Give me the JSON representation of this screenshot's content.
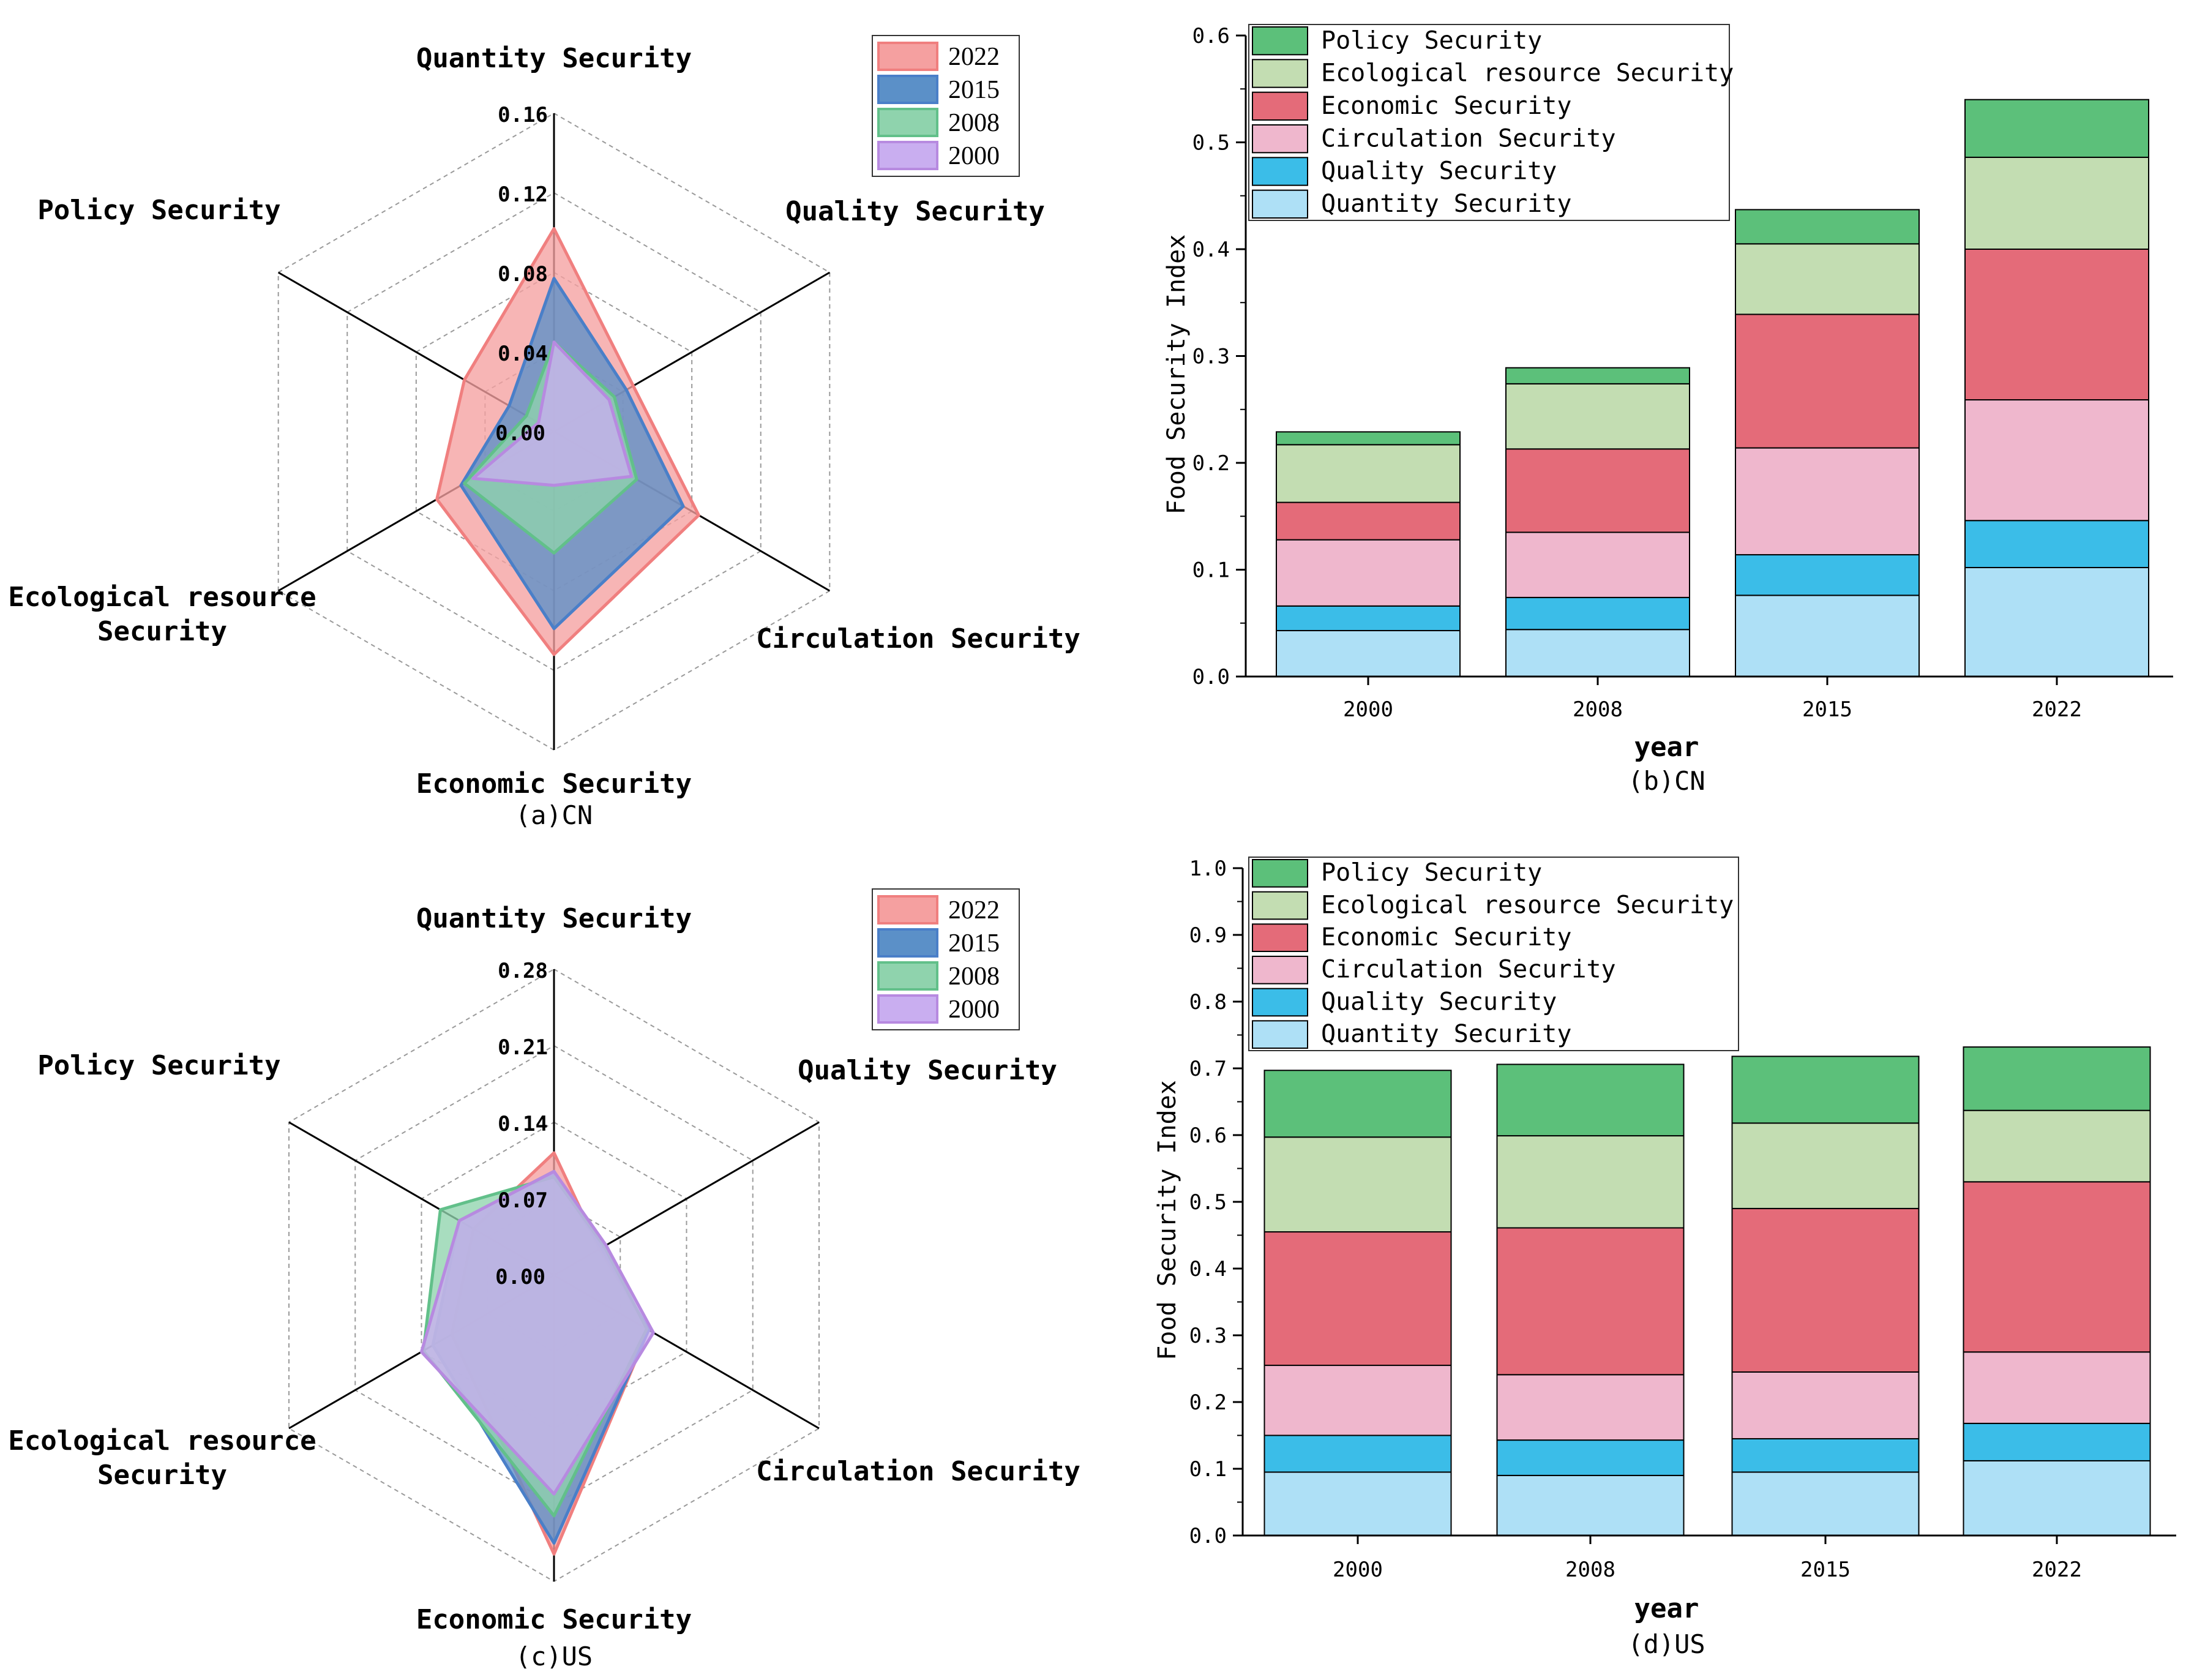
{
  "chart_data": [
    {
      "id": "a",
      "type": "radar",
      "caption": "(a)CN",
      "axes": [
        "Quantity Security",
        "Quality Security",
        "Circulation Security",
        "Economic Security",
        "Ecological resource Security",
        "Policy Security"
      ],
      "axis_label_lines": [
        [
          "Quantity Security"
        ],
        [
          "Quality Security"
        ],
        [
          "Circulation Security"
        ],
        [
          "Economic Security"
        ],
        [
          "Ecological resource",
          "Security"
        ],
        [
          "Policy Security"
        ]
      ],
      "ticks": [
        "0.00",
        "0.04",
        "0.08",
        "0.12",
        "0.16"
      ],
      "rmax": 0.16,
      "legend": [
        "2022",
        "2015",
        "2008",
        "2000"
      ],
      "colors": {
        "2022": "#f07f7f",
        "2015": "#4a7fc8",
        "2008": "#62c08a",
        "2000": "#b78ae0"
      },
      "fills": {
        "2022": "#f5a0a0",
        "2015": "#5b90c8",
        "2008": "#8fd3ad",
        "2000": "#c9aef0"
      },
      "series": [
        {
          "name": "2022",
          "values": [
            0.102,
            0.046,
            0.084,
            0.112,
            0.068,
            0.052
          ]
        },
        {
          "name": "2015",
          "values": [
            0.077,
            0.042,
            0.075,
            0.099,
            0.054,
            0.026
          ]
        },
        {
          "name": "2008",
          "values": [
            0.045,
            0.035,
            0.048,
            0.061,
            0.052,
            0.016
          ]
        },
        {
          "name": "2000",
          "values": [
            0.045,
            0.032,
            0.045,
            0.027,
            0.047,
            0.009
          ]
        }
      ]
    },
    {
      "id": "b",
      "type": "stacked_bar",
      "caption": "(b)CN",
      "xlabel": "year",
      "ylabel": "Food Security Index",
      "categories": [
        "2000",
        "2008",
        "2015",
        "2022"
      ],
      "yticks": [
        "0.0",
        "0.1",
        "0.2",
        "0.3",
        "0.4",
        "0.5",
        "0.6"
      ],
      "ylim": [
        0,
        0.6
      ],
      "series": [
        {
          "name": "Quantity Security",
          "color": "#aee0f6",
          "values": [
            0.043,
            0.044,
            0.076,
            0.102
          ]
        },
        {
          "name": "Quality Security",
          "color": "#3bbde8",
          "values": [
            0.023,
            0.03,
            0.038,
            0.044
          ]
        },
        {
          "name": "Circulation Security",
          "color": "#efb7cd",
          "values": [
            0.062,
            0.061,
            0.1,
            0.113
          ]
        },
        {
          "name": "Economic Security",
          "color": "#e46b79",
          "values": [
            0.035,
            0.078,
            0.125,
            0.141
          ]
        },
        {
          "name": "Ecological resource Security",
          "color": "#c3ddb2",
          "values": [
            0.054,
            0.061,
            0.066,
            0.086
          ]
        },
        {
          "name": "Policy Security",
          "color": "#5cc07a",
          "values": [
            0.012,
            0.015,
            0.032,
            0.054
          ]
        }
      ]
    },
    {
      "id": "c",
      "type": "radar",
      "caption": "(c)US",
      "axes": [
        "Quantity Security",
        "Quality Security",
        "Circulation Security",
        "Economic Security",
        "Ecological resource Security",
        "Policy Security"
      ],
      "axis_label_lines": [
        [
          "Quantity Security"
        ],
        [
          "Quality Security"
        ],
        [
          "Circulation Security"
        ],
        [
          "Economic Security"
        ],
        [
          "Ecological resource",
          "Security"
        ],
        [
          "Policy Security"
        ]
      ],
      "ticks": [
        "0.00",
        "0.07",
        "0.14",
        "0.21",
        "0.28"
      ],
      "rmax": 0.28,
      "legend": [
        "2022",
        "2015",
        "2008",
        "2000"
      ],
      "colors": {
        "2022": "#f07f7f",
        "2015": "#4a7fc8",
        "2008": "#62c08a",
        "2000": "#b78ae0"
      },
      "fills": {
        "2022": "#f5a0a0",
        "2015": "#5b90c8",
        "2008": "#8fd3ad",
        "2000": "#c9aef0"
      },
      "series": [
        {
          "name": "2022",
          "values": [
            0.112,
            0.048,
            0.1,
            0.255,
            0.108,
            0.085
          ]
        },
        {
          "name": "2015",
          "values": [
            0.095,
            0.05,
            0.1,
            0.245,
            0.128,
            0.1
          ]
        },
        {
          "name": "2008",
          "values": [
            0.09,
            0.053,
            0.098,
            0.22,
            0.138,
            0.12
          ]
        },
        {
          "name": "2000",
          "values": [
            0.095,
            0.055,
            0.105,
            0.2,
            0.14,
            0.1
          ]
        }
      ]
    },
    {
      "id": "d",
      "type": "stacked_bar",
      "caption": "(d)US",
      "xlabel": "year",
      "ylabel": "Food Security Index",
      "categories": [
        "2000",
        "2008",
        "2015",
        "2022"
      ],
      "yticks": [
        "0.0",
        "0.1",
        "0.2",
        "0.3",
        "0.4",
        "0.5",
        "0.6",
        "0.7",
        "0.8",
        "0.9",
        "1.0"
      ],
      "ylim": [
        0,
        1.0
      ],
      "series": [
        {
          "name": "Quantity Security",
          "color": "#aee0f6",
          "values": [
            0.095,
            0.09,
            0.095,
            0.112
          ]
        },
        {
          "name": "Quality Security",
          "color": "#3bbde8",
          "values": [
            0.055,
            0.053,
            0.05,
            0.056
          ]
        },
        {
          "name": "Circulation Security",
          "color": "#efb7cd",
          "values": [
            0.105,
            0.098,
            0.1,
            0.107
          ]
        },
        {
          "name": "Economic Security",
          "color": "#e46b79",
          "values": [
            0.2,
            0.22,
            0.245,
            0.255
          ]
        },
        {
          "name": "Ecological resource Security",
          "color": "#c3ddb2",
          "values": [
            0.142,
            0.138,
            0.128,
            0.107
          ]
        },
        {
          "name": "Policy Security",
          "color": "#5cc07a",
          "values": [
            0.1,
            0.107,
            0.1,
            0.095
          ]
        }
      ]
    }
  ]
}
